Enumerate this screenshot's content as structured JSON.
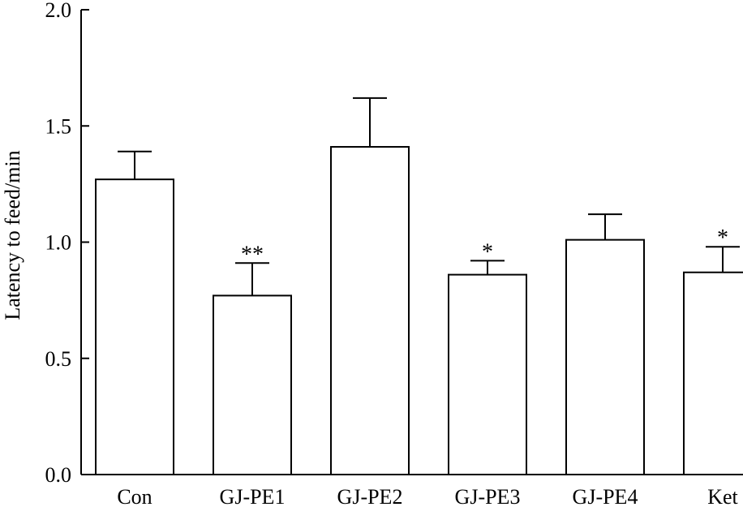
{
  "chart_data": {
    "type": "bar",
    "title": "",
    "xlabel": "",
    "ylabel": "Latency to feed/min",
    "ylim": [
      0,
      2.0
    ],
    "yticks": [
      "0.0",
      "0.5",
      "1.0",
      "1.5",
      "2.0"
    ],
    "categories": [
      "Con",
      "GJ-PE1",
      "GJ-PE2",
      "GJ-PE3",
      "GJ-PE4",
      "Ket"
    ],
    "values": [
      1.27,
      0.77,
      1.41,
      0.86,
      1.01,
      0.87
    ],
    "errors": [
      0.12,
      0.14,
      0.21,
      0.06,
      0.11,
      0.11
    ],
    "significance": [
      "",
      "**",
      "",
      "*",
      "",
      "*"
    ],
    "grid": false,
    "legend": "none",
    "colors": {
      "bar_fill": "#ffffff",
      "bar_stroke": "#000000"
    }
  }
}
